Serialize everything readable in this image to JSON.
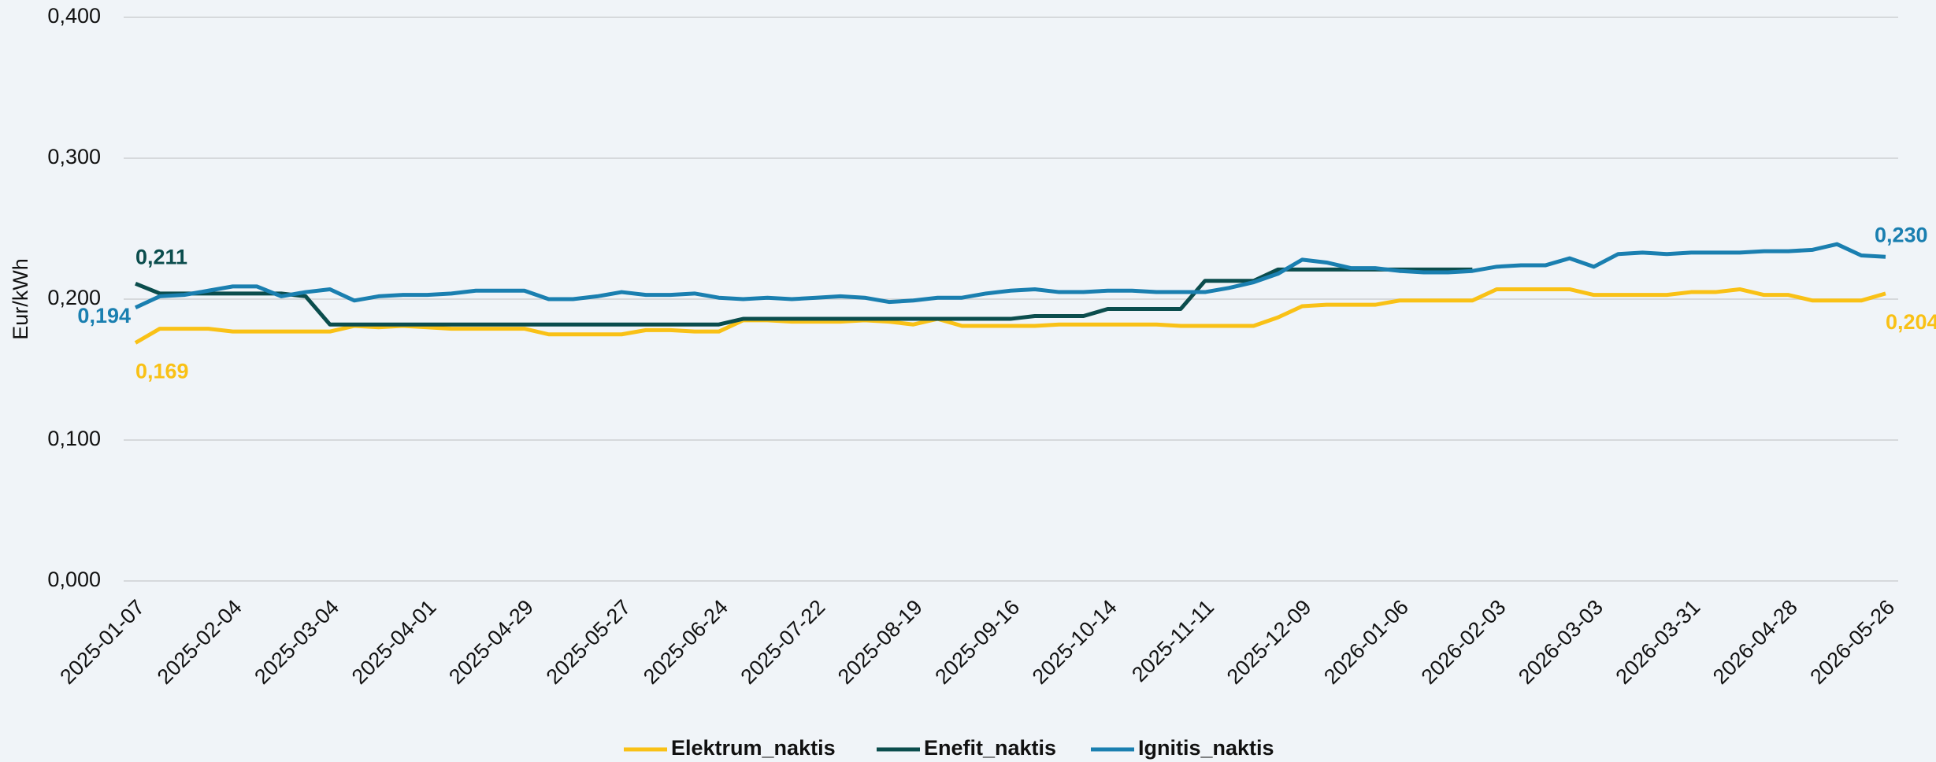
{
  "chart_data": {
    "type": "line",
    "y_label": "Eur/kWh",
    "categories": [
      "2025-01-07",
      null,
      null,
      null,
      "2025-02-04",
      null,
      null,
      null,
      "2025-03-04",
      null,
      null,
      null,
      "2025-04-01",
      null,
      null,
      null,
      "2025-04-29",
      null,
      null,
      null,
      "2025-05-27",
      null,
      null,
      null,
      "2025-06-24",
      null,
      null,
      null,
      "2025-07-22",
      null,
      null,
      null,
      "2025-08-19",
      null,
      null,
      null,
      "2025-09-16",
      null,
      null,
      null,
      "2025-10-14",
      null,
      null,
      null,
      "2025-11-11",
      null,
      null,
      null,
      "2025-12-09",
      null,
      null,
      null,
      "2026-01-06",
      null,
      null,
      null,
      "2026-02-03",
      null,
      null,
      null,
      "2026-03-03",
      null,
      null,
      null,
      "2026-03-31",
      null,
      null,
      null,
      "2026-04-28",
      null,
      null,
      null,
      "2026-05-26"
    ],
    "series": [
      {
        "name": "Elektrum_naktis",
        "color": "#f9c116",
        "values": [
          0.169,
          0.179,
          0.179,
          0.179,
          0.177,
          0.177,
          0.177,
          0.177,
          0.177,
          0.181,
          0.18,
          0.181,
          0.18,
          0.179,
          0.179,
          0.179,
          0.179,
          0.175,
          0.175,
          0.175,
          0.175,
          0.178,
          0.178,
          0.177,
          0.177,
          0.185,
          0.185,
          0.184,
          0.184,
          0.184,
          0.185,
          0.184,
          0.182,
          0.186,
          0.181,
          0.181,
          0.181,
          0.181,
          0.182,
          0.182,
          0.182,
          0.182,
          0.182,
          0.181,
          0.181,
          0.181,
          0.181,
          0.187,
          0.195,
          0.196,
          0.196,
          0.196,
          0.199,
          0.199,
          0.199,
          0.199,
          0.207,
          0.207,
          0.207,
          0.207,
          0.203,
          0.203,
          0.203,
          0.203,
          0.205,
          0.205,
          0.207,
          0.203,
          0.203,
          0.199,
          0.199,
          0.199,
          0.204
        ],
        "value_labels": [
          "0,169",
          null,
          null,
          null,
          null,
          null,
          null,
          null,
          null,
          null,
          null,
          null,
          null,
          null,
          null,
          null,
          null,
          null,
          null,
          null,
          null,
          null,
          null,
          null,
          null,
          null,
          null,
          null,
          null,
          null,
          null,
          null,
          null,
          null,
          null,
          null,
          null,
          null,
          null,
          null,
          null,
          null,
          null,
          null,
          null,
          null,
          null,
          null,
          null,
          null,
          null,
          null,
          null,
          null,
          null,
          null,
          null,
          null,
          null,
          null,
          null,
          null,
          null,
          null,
          null,
          null,
          null,
          null,
          null,
          null,
          null,
          null,
          "0,204"
        ]
      },
      {
        "name": "Enefit_naktis",
        "color": "#0b4d4d",
        "values": [
          0.211,
          0.204,
          0.204,
          0.204,
          0.204,
          0.204,
          0.204,
          0.202,
          0.182,
          0.182,
          0.182,
          0.182,
          0.182,
          0.182,
          0.182,
          0.182,
          0.182,
          0.182,
          0.182,
          0.182,
          0.182,
          0.182,
          0.182,
          0.182,
          0.182,
          0.186,
          0.186,
          0.186,
          0.186,
          0.186,
          0.186,
          0.186,
          0.186,
          0.186,
          0.186,
          0.186,
          0.186,
          0.188,
          0.188,
          0.188,
          0.193,
          0.193,
          0.193,
          0.193,
          0.213,
          0.213,
          0.213,
          0.221,
          0.221,
          0.221,
          0.221,
          0.221,
          0.221,
          0.221,
          0.221,
          0.221,
          null,
          null,
          null,
          null,
          null,
          null,
          null,
          null,
          null,
          null,
          null,
          null,
          null,
          null,
          null,
          null,
          null
        ],
        "value_labels": [
          "0,211",
          null,
          null,
          null,
          null,
          null,
          null,
          null,
          null,
          null,
          null,
          null,
          null,
          null,
          null,
          null,
          null,
          null,
          null,
          null,
          null,
          null,
          null,
          null,
          null,
          null,
          null,
          null,
          null,
          null,
          null,
          null,
          null,
          null,
          null,
          null,
          null,
          null,
          null,
          null,
          null,
          null,
          null,
          null,
          null,
          null,
          null,
          null,
          null,
          null,
          null,
          null,
          null,
          null,
          null,
          null,
          null,
          null,
          null,
          null,
          null,
          null,
          null,
          null,
          null,
          null,
          null,
          null,
          null,
          null,
          null,
          null,
          null
        ]
      },
      {
        "name": "Ignitis_naktis",
        "color": "#1a7fb0",
        "values": [
          0.194,
          0.202,
          0.203,
          0.206,
          0.209,
          0.209,
          0.202,
          0.205,
          0.207,
          0.199,
          0.202,
          0.203,
          0.203,
          0.204,
          0.206,
          0.206,
          0.206,
          0.2,
          0.2,
          0.202,
          0.205,
          0.203,
          0.203,
          0.204,
          0.201,
          0.2,
          0.201,
          0.2,
          0.201,
          0.202,
          0.201,
          0.198,
          0.199,
          0.201,
          0.201,
          0.204,
          0.206,
          0.207,
          0.205,
          0.205,
          0.206,
          0.206,
          0.205,
          0.205,
          0.205,
          0.208,
          0.212,
          0.218,
          0.228,
          0.226,
          0.222,
          0.222,
          0.22,
          0.219,
          0.219,
          0.22,
          0.223,
          0.224,
          0.224,
          0.229,
          0.223,
          0.232,
          0.233,
          0.232,
          0.233,
          0.233,
          0.233,
          0.234,
          0.234,
          0.235,
          0.239,
          0.231,
          0.23
        ],
        "value_labels": [
          "0,194",
          null,
          null,
          null,
          null,
          null,
          null,
          null,
          null,
          null,
          null,
          null,
          null,
          null,
          null,
          null,
          null,
          null,
          null,
          null,
          null,
          null,
          null,
          null,
          null,
          null,
          null,
          null,
          null,
          null,
          null,
          null,
          null,
          null,
          null,
          null,
          null,
          null,
          null,
          null,
          null,
          null,
          null,
          null,
          null,
          null,
          null,
          null,
          null,
          null,
          null,
          null,
          null,
          null,
          null,
          null,
          null,
          null,
          null,
          null,
          null,
          null,
          null,
          null,
          null,
          null,
          null,
          null,
          null,
          null,
          null,
          null,
          "0,230"
        ]
      }
    ],
    "ylim": [
      0,
      0.4
    ],
    "yticks": [
      {
        "value": 0,
        "label": "0,000"
      },
      {
        "value": 0.1,
        "label": "0,100"
      },
      {
        "value": 0.2,
        "label": "0,200"
      },
      {
        "value": 0.3,
        "label": "0,300"
      },
      {
        "value": 0.4,
        "label": "0,400"
      }
    ],
    "grid": true,
    "legend": "bottom"
  }
}
